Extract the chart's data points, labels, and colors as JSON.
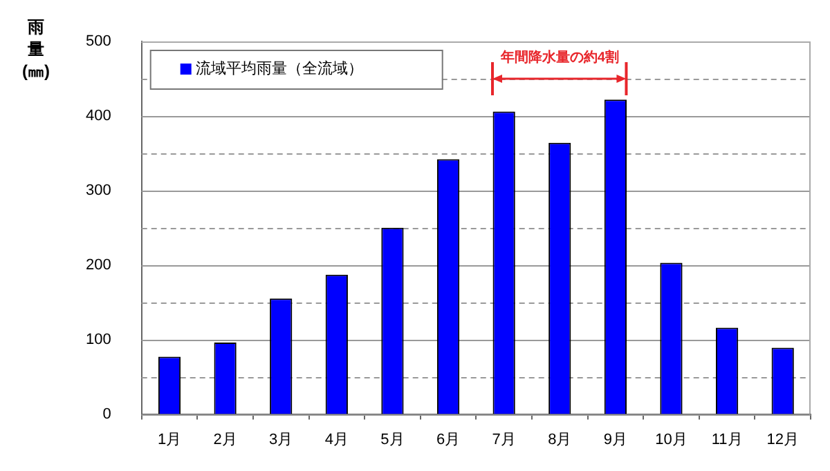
{
  "chart_data": {
    "type": "bar",
    "ylabel": "雨量(㎜)",
    "categories": [
      "1月",
      "2月",
      "3月",
      "4月",
      "5月",
      "6月",
      "7月",
      "8月",
      "9月",
      "10月",
      "11月",
      "12月"
    ],
    "series": [
      {
        "name": "流域平均雨量（全流域）",
        "color": "#0000ff",
        "values": [
          77,
          96,
          155,
          187,
          250,
          342,
          406,
          364,
          422,
          203,
          116,
          89
        ]
      }
    ],
    "ylim": [
      0,
      500
    ],
    "yticks": [
      0,
      {
        "value": 50,
        "label": null
      },
      100,
      {
        "value": 150,
        "label": null
      },
      200,
      {
        "value": 250,
        "label": null
      },
      300,
      {
        "value": 350,
        "label": null
      },
      400,
      {
        "value": 450,
        "label": null
      },
      500
    ],
    "annotations": [
      "年間降水量の約4割"
    ],
    "grid": "y",
    "legend": "top left"
  }
}
